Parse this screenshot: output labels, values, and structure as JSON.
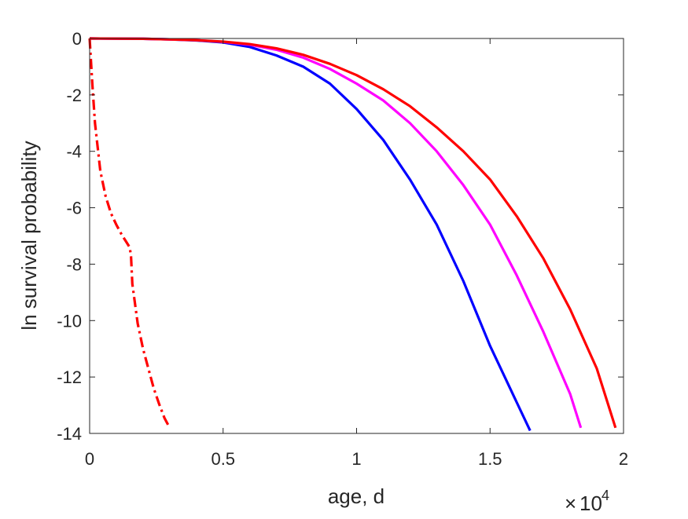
{
  "chart_data": {
    "type": "line",
    "title": "",
    "xlabel": "age, d",
    "ylabel": "ln survival probability",
    "x_multiplier": {
      "base": "10",
      "exponent": "4"
    },
    "xlim": [
      0,
      2
    ],
    "ylim": [
      -14,
      0
    ],
    "xticks": [
      0,
      0.5,
      1,
      1.5,
      2
    ],
    "xtick_labels": [
      "0",
      "0.5",
      "1",
      "1.5",
      "2"
    ],
    "yticks": [
      0,
      -2,
      -4,
      -6,
      -8,
      -10,
      -12,
      -14
    ],
    "ytick_labels": [
      "0",
      "-2",
      "-4",
      "-6",
      "-8",
      "-10",
      "-12",
      "-14"
    ],
    "grid": false,
    "legend": "none",
    "series": [
      {
        "color": "#0000ff",
        "linestyle": "solid",
        "x": [
          0,
          0.2,
          0.3,
          0.4,
          0.5,
          0.6,
          0.7,
          0.8,
          0.9,
          1.0,
          1.1,
          1.2,
          1.3,
          1.4,
          1.5,
          1.6,
          1.65
        ],
        "y": [
          0,
          -0.01,
          -0.03,
          -0.07,
          -0.14,
          -0.3,
          -0.6,
          -1.0,
          -1.6,
          -2.5,
          -3.6,
          -5.0,
          -6.6,
          -8.6,
          -10.9,
          -12.9,
          -13.9
        ]
      },
      {
        "color": "#ff00ff",
        "linestyle": "solid",
        "x": [
          0,
          0.2,
          0.3,
          0.4,
          0.5,
          0.6,
          0.7,
          0.8,
          0.9,
          1.0,
          1.1,
          1.2,
          1.3,
          1.4,
          1.5,
          1.6,
          1.7,
          1.8,
          1.84
        ],
        "y": [
          0,
          -0.01,
          -0.03,
          -0.06,
          -0.12,
          -0.22,
          -0.4,
          -0.68,
          -1.08,
          -1.6,
          -2.2,
          -3.0,
          -4.0,
          -5.2,
          -6.6,
          -8.4,
          -10.4,
          -12.6,
          -13.8
        ]
      },
      {
        "color": "#ff0000",
        "linestyle": "solid",
        "x": [
          0,
          0.2,
          0.3,
          0.4,
          0.5,
          0.6,
          0.7,
          0.8,
          0.9,
          1.0,
          1.1,
          1.2,
          1.3,
          1.4,
          1.5,
          1.6,
          1.7,
          1.8,
          1.9,
          1.97
        ],
        "y": [
          0,
          -0.01,
          -0.03,
          -0.06,
          -0.11,
          -0.2,
          -0.35,
          -0.58,
          -0.9,
          -1.3,
          -1.8,
          -2.4,
          -3.15,
          -4.0,
          -5.0,
          -6.3,
          -7.8,
          -9.6,
          -11.7,
          -13.8
        ]
      },
      {
        "color": "#ff0000",
        "linestyle": "dashdot",
        "x": [
          0,
          0.005,
          0.01,
          0.02,
          0.04,
          0.06,
          0.08,
          0.1,
          0.12,
          0.14,
          0.15,
          0.155,
          0.16,
          0.18,
          0.2,
          0.22,
          0.24,
          0.26,
          0.28,
          0.3
        ],
        "y": [
          0,
          -0.8,
          -1.6,
          -3.0,
          -4.7,
          -5.6,
          -6.2,
          -6.6,
          -6.95,
          -7.25,
          -7.4,
          -7.7,
          -8.7,
          -10.1,
          -11.0,
          -11.7,
          -12.4,
          -12.95,
          -13.45,
          -13.8
        ]
      }
    ]
  }
}
